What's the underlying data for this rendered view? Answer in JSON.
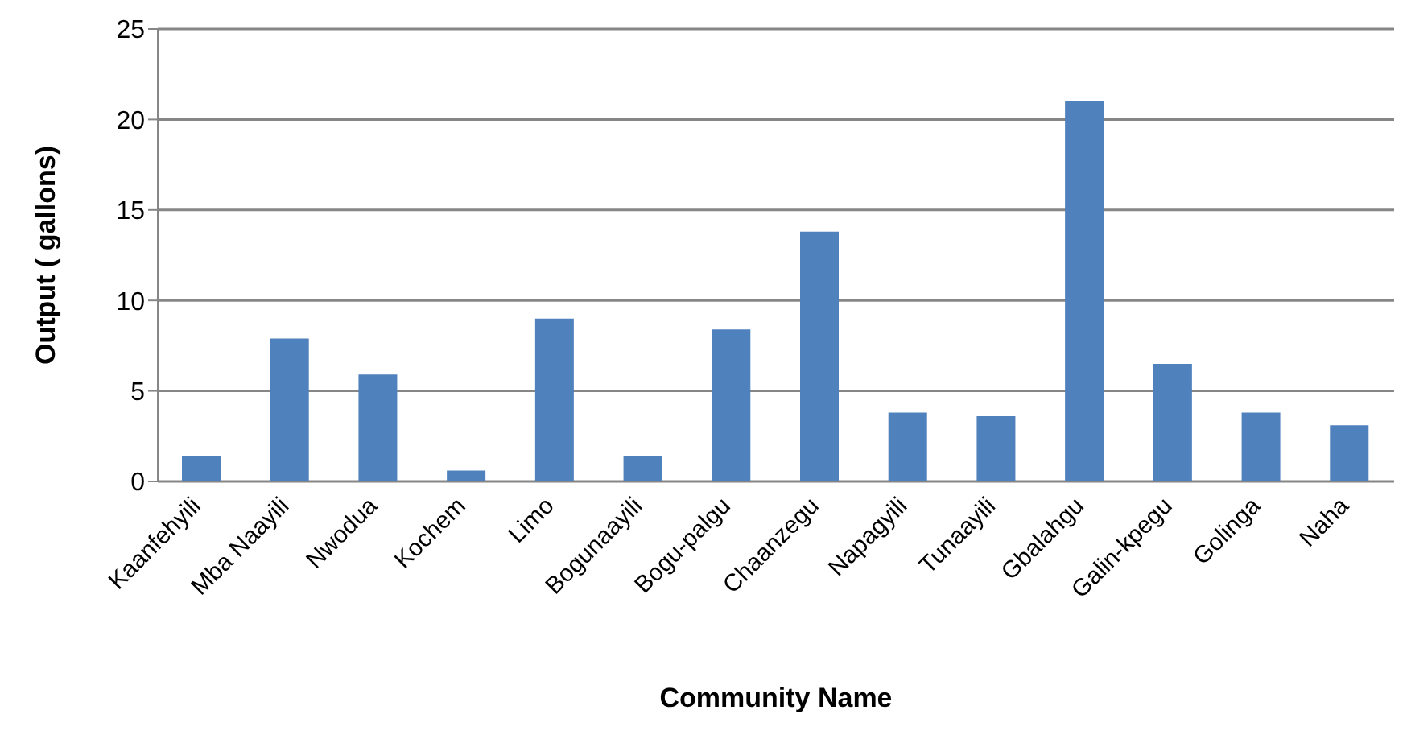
{
  "chart_data": {
    "type": "bar",
    "xlabel": "Community Name",
    "ylabel": "Output ( gallons)",
    "categories": [
      "Kaanfehyili",
      "Mba Naayili",
      "Nwodua",
      "Kochem",
      "Limo",
      "Bogunaayili",
      "Bogu-palgu",
      "Chaanzegu",
      "Napagyili",
      "Tunaayili",
      "Gbalahgu",
      "Galin-kpegu",
      "Golinga",
      "Naha"
    ],
    "values": [
      1.4,
      7.9,
      5.9,
      0.6,
      9.0,
      1.4,
      8.4,
      13.8,
      3.8,
      3.6,
      21.0,
      6.5,
      3.8,
      3.1
    ],
    "color": "#4f81bd",
    "ylim": [
      0,
      25
    ],
    "yticks": [
      0,
      5,
      10,
      15,
      20,
      25
    ],
    "grid": "y"
  }
}
